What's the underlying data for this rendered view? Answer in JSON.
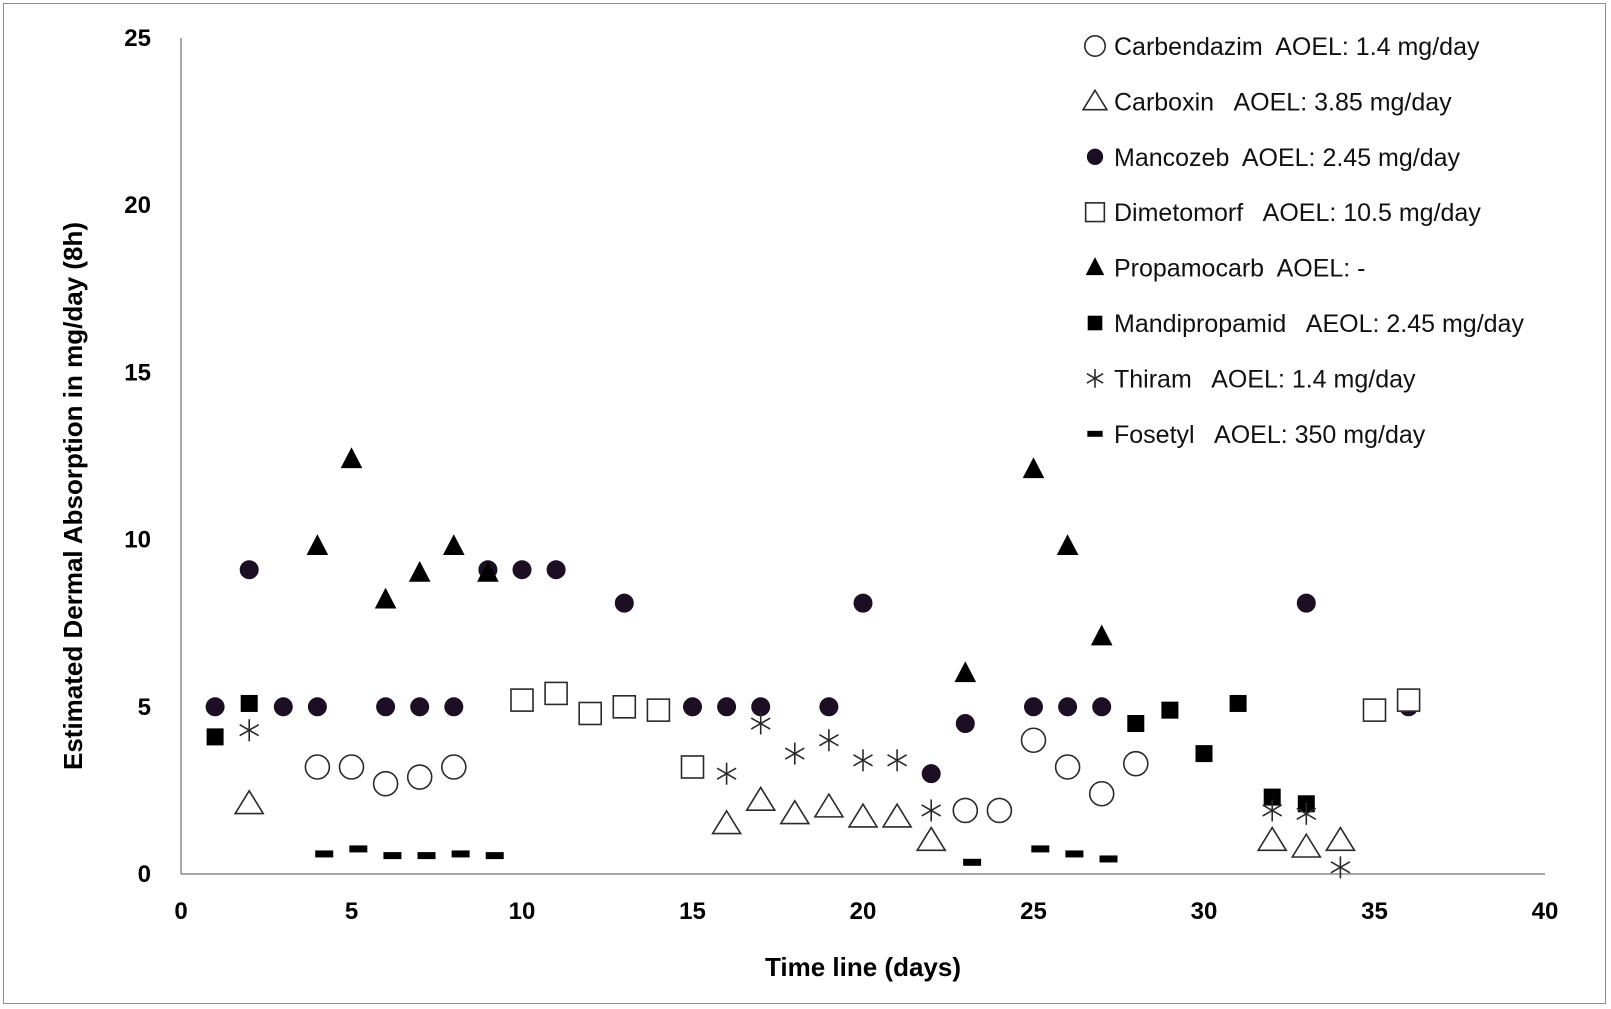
{
  "chart_data": {
    "type": "scatter",
    "title": "",
    "xlabel": "Time line (days)",
    "ylabel": "Estimated Dermal Absorption in mg/day (8h)",
    "xlim": [
      0,
      40
    ],
    "ylim": [
      0,
      25
    ],
    "xticks": [
      "0",
      "5",
      "10",
      "15",
      "20",
      "25",
      "30",
      "35",
      "40"
    ],
    "yticks": [
      "0",
      "5",
      "10",
      "15",
      "20",
      "25"
    ],
    "grid": false,
    "legend_position": "top-right",
    "series": [
      {
        "name": "Carbendazim",
        "label": "Carbendazim  AOEL: 1.4 mg/day",
        "marker": "circle-open",
        "points": [
          [
            4,
            3.2
          ],
          [
            5,
            3.2
          ],
          [
            6,
            2.7
          ],
          [
            7,
            2.9
          ],
          [
            8,
            3.2
          ],
          [
            23,
            1.9
          ],
          [
            24,
            1.9
          ],
          [
            25,
            4.0
          ],
          [
            26,
            3.2
          ],
          [
            27,
            2.4
          ],
          [
            28,
            3.3
          ]
        ]
      },
      {
        "name": "Carboxin",
        "label": "Carboxin   AOEL: 3.85 mg/day",
        "marker": "triangle-open",
        "points": [
          [
            2,
            2.1
          ],
          [
            16,
            1.5
          ],
          [
            17,
            2.2
          ],
          [
            18,
            1.8
          ],
          [
            19,
            2.0
          ],
          [
            20,
            1.7
          ],
          [
            21,
            1.7
          ],
          [
            22,
            1.0
          ],
          [
            32,
            1.0
          ],
          [
            33,
            0.8
          ],
          [
            34,
            1.0
          ]
        ]
      },
      {
        "name": "Mancozeb",
        "label": "Mancozeb  AOEL: 2.45 mg/day",
        "marker": "circle-filled",
        "points": [
          [
            1,
            5.0
          ],
          [
            2,
            9.1
          ],
          [
            3,
            5.0
          ],
          [
            4,
            5.0
          ],
          [
            6,
            5.0
          ],
          [
            7,
            5.0
          ],
          [
            8,
            5.0
          ],
          [
            9,
            9.1
          ],
          [
            10,
            9.1
          ],
          [
            11,
            9.1
          ],
          [
            13,
            8.1
          ],
          [
            15,
            5.0
          ],
          [
            16,
            5.0
          ],
          [
            17,
            5.0
          ],
          [
            19,
            5.0
          ],
          [
            20,
            8.1
          ],
          [
            22,
            3.0
          ],
          [
            23,
            4.5
          ],
          [
            25,
            5.0
          ],
          [
            26,
            5.0
          ],
          [
            27,
            5.0
          ],
          [
            33,
            8.1
          ],
          [
            36,
            5.0
          ]
        ]
      },
      {
        "name": "Dimetomorf",
        "label": "Dimetomorf   AOEL: 10.5 mg/day",
        "marker": "square-open",
        "points": [
          [
            10,
            5.2
          ],
          [
            11,
            5.4
          ],
          [
            12,
            4.8
          ],
          [
            13,
            5.0
          ],
          [
            14,
            4.9
          ],
          [
            15,
            3.2
          ],
          [
            35,
            4.9
          ],
          [
            36,
            5.2
          ]
        ]
      },
      {
        "name": "Propamocarb",
        "label": "Propamocarb  AOEL: -",
        "marker": "triangle-filled",
        "points": [
          [
            4,
            9.8
          ],
          [
            5,
            12.4
          ],
          [
            6,
            8.2
          ],
          [
            7,
            9.0
          ],
          [
            8,
            9.8
          ],
          [
            9,
            9.0
          ],
          [
            23,
            6.0
          ],
          [
            25,
            12.1
          ],
          [
            26,
            9.8
          ],
          [
            27,
            7.1
          ]
        ]
      },
      {
        "name": "Mandipropamid",
        "label": "Mandipropamid   AEOL: 2.45 mg/day",
        "marker": "square-filled",
        "points": [
          [
            1,
            4.1
          ],
          [
            2,
            5.1
          ],
          [
            28,
            4.5
          ],
          [
            29,
            4.9
          ],
          [
            30,
            3.6
          ],
          [
            31,
            5.1
          ],
          [
            32,
            2.3
          ],
          [
            33,
            2.1
          ]
        ]
      },
      {
        "name": "Thiram",
        "label": "Thiram   AOEL: 1.4 mg/day",
        "marker": "asterisk",
        "points": [
          [
            2,
            4.3
          ],
          [
            16,
            3.0
          ],
          [
            17,
            4.5
          ],
          [
            18,
            3.6
          ],
          [
            19,
            4.0
          ],
          [
            20,
            3.4
          ],
          [
            21,
            3.4
          ],
          [
            22,
            1.9
          ],
          [
            32,
            1.9
          ],
          [
            33,
            1.8
          ],
          [
            34,
            0.2
          ]
        ]
      },
      {
        "name": "Fosetyl",
        "label": "Fosetyl   AOEL: 350 mg/day",
        "marker": "dash",
        "points": [
          [
            4.2,
            0.6
          ],
          [
            5.2,
            0.75
          ],
          [
            6.2,
            0.55
          ],
          [
            7.2,
            0.55
          ],
          [
            8.2,
            0.6
          ],
          [
            9.2,
            0.55
          ],
          [
            23.2,
            0.35
          ],
          [
            25.2,
            0.75
          ],
          [
            26.2,
            0.6
          ],
          [
            27.2,
            0.45
          ]
        ]
      }
    ]
  }
}
